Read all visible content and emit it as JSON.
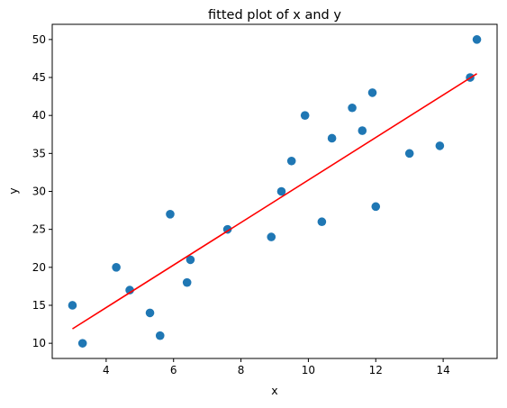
{
  "chart_data": {
    "type": "scatter",
    "title": "fitted plot of x and y",
    "xlabel": "x",
    "ylabel": "y",
    "xlim": [
      2.4,
      15.6
    ],
    "ylim": [
      8.0,
      52.0
    ],
    "xticks": [
      4,
      6,
      8,
      10,
      12,
      14
    ],
    "yticks": [
      10,
      15,
      20,
      25,
      30,
      35,
      40,
      45,
      50
    ],
    "grid": false,
    "legend": "none",
    "series": [
      {
        "type": "scatter",
        "color": "#1f77b4",
        "points": [
          {
            "x": 3.0,
            "y": 15
          },
          {
            "x": 3.3,
            "y": 10
          },
          {
            "x": 4.3,
            "y": 20
          },
          {
            "x": 4.7,
            "y": 17
          },
          {
            "x": 5.3,
            "y": 14
          },
          {
            "x": 5.6,
            "y": 11
          },
          {
            "x": 5.9,
            "y": 27
          },
          {
            "x": 6.4,
            "y": 18
          },
          {
            "x": 6.5,
            "y": 21
          },
          {
            "x": 7.6,
            "y": 25
          },
          {
            "x": 8.9,
            "y": 24
          },
          {
            "x": 9.2,
            "y": 30
          },
          {
            "x": 9.5,
            "y": 34
          },
          {
            "x": 9.9,
            "y": 40
          },
          {
            "x": 10.4,
            "y": 26
          },
          {
            "x": 10.7,
            "y": 37
          },
          {
            "x": 11.3,
            "y": 41
          },
          {
            "x": 11.6,
            "y": 38
          },
          {
            "x": 11.9,
            "y": 43
          },
          {
            "x": 12.0,
            "y": 28
          },
          {
            "x": 13.0,
            "y": 35
          },
          {
            "x": 13.9,
            "y": 36
          },
          {
            "x": 14.8,
            "y": 45
          },
          {
            "x": 15.0,
            "y": 50
          }
        ]
      },
      {
        "type": "line",
        "color": "#ff0000",
        "points": [
          {
            "x": 3.0,
            "y": 11.9
          },
          {
            "x": 15.0,
            "y": 45.5
          }
        ]
      }
    ]
  }
}
